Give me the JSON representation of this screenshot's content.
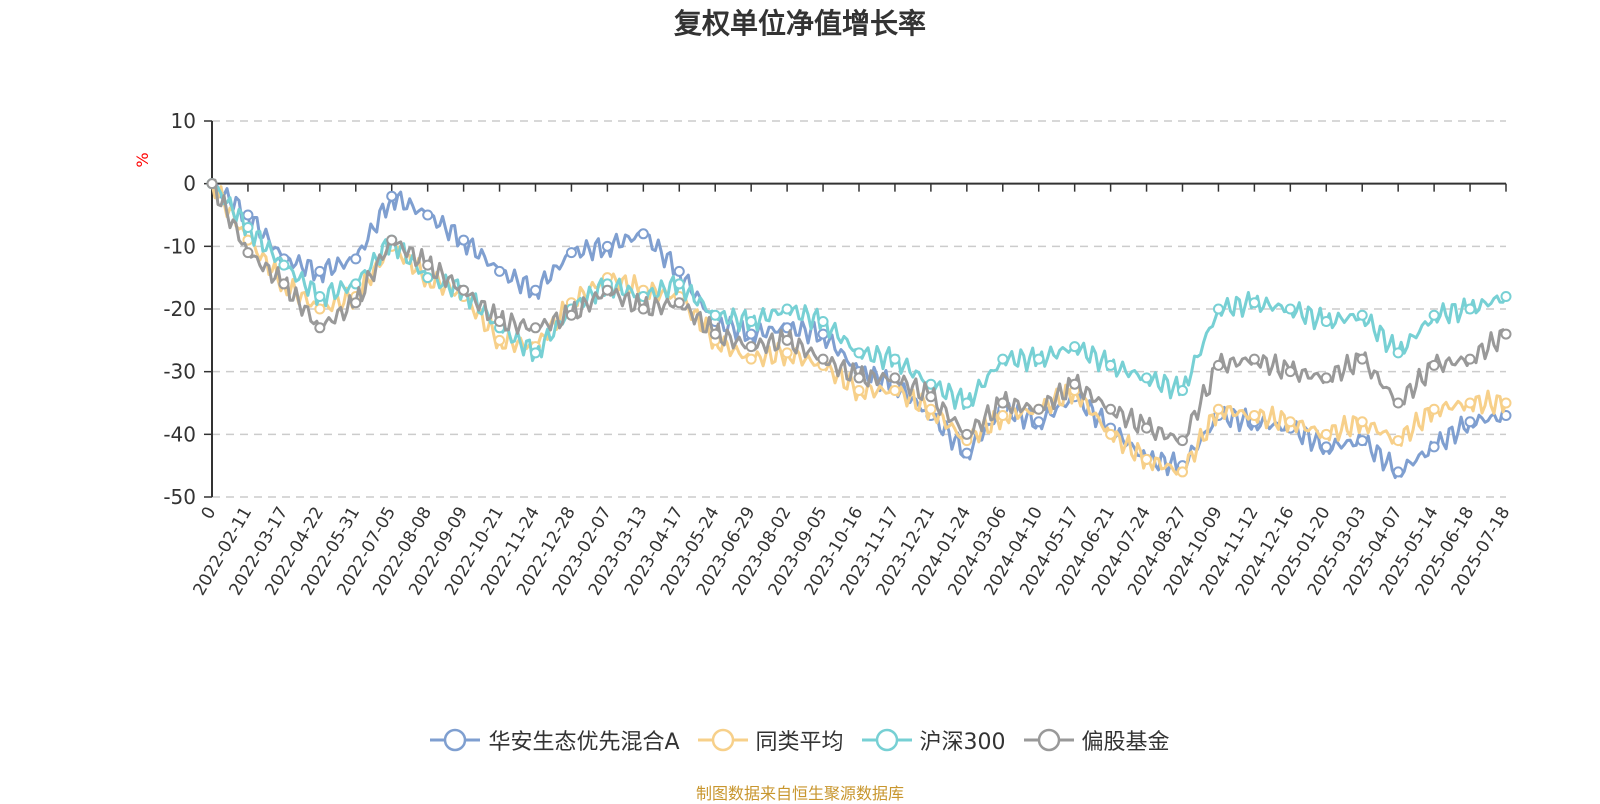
{
  "chart_data": {
    "type": "line",
    "title": "复权单位净值增长率",
    "ylabel": "%",
    "ylim": [
      -50,
      10
    ],
    "yticks": [
      10,
      0,
      -10,
      -20,
      -30,
      -40,
      -50
    ],
    "grid": true,
    "legend_position": "bottom",
    "x": [
      "0",
      "2022-02-11",
      "2022-03-17",
      "2022-04-22",
      "2022-05-31",
      "2022-07-05",
      "2022-08-08",
      "2022-09-09",
      "2022-10-21",
      "2022-11-24",
      "2022-12-28",
      "2023-02-07",
      "2023-03-13",
      "2023-04-17",
      "2023-05-24",
      "2023-06-29",
      "2023-08-02",
      "2023-09-05",
      "2023-10-16",
      "2023-11-17",
      "2023-12-21",
      "2024-01-24",
      "2024-03-06",
      "2024-04-10",
      "2024-05-17",
      "2024-06-21",
      "2024-07-24",
      "2024-08-27",
      "2024-10-09",
      "2024-11-12",
      "2024-12-16",
      "2025-01-20",
      "2025-03-03",
      "2025-04-07",
      "2025-05-14",
      "2025-06-18",
      "2025-07-18"
    ],
    "series": [
      {
        "name": "华安生态优先混合A",
        "color": "#7f9fd0",
        "values": [
          0,
          -5,
          -12,
          -14,
          -12,
          -2,
          -5,
          -9,
          -14,
          -17,
          -11,
          -10,
          -8,
          -14,
          -22,
          -24,
          -23,
          -24,
          -30,
          -32,
          -37,
          -43,
          -36,
          -38,
          -34,
          -39,
          -44,
          -45,
          -37,
          -38,
          -39,
          -42,
          -41,
          -46,
          -42,
          -38,
          -37
        ]
      },
      {
        "name": "同类平均",
        "color": "#f7d08a",
        "values": [
          0,
          -9,
          -16,
          -20,
          -18,
          -10,
          -15,
          -18,
          -25,
          -26,
          -19,
          -15,
          -17,
          -18,
          -25,
          -28,
          -27,
          -29,
          -33,
          -33,
          -36,
          -41,
          -37,
          -36,
          -33,
          -40,
          -44,
          -46,
          -36,
          -37,
          -38,
          -40,
          -38,
          -41,
          -36,
          -35,
          -35
        ]
      },
      {
        "name": "沪深300",
        "color": "#77d0d4",
        "values": [
          0,
          -7,
          -13,
          -18,
          -16,
          -9,
          -15,
          -17,
          -23,
          -27,
          -20,
          -16,
          -18,
          -16,
          -21,
          -22,
          -20,
          -22,
          -27,
          -28,
          -32,
          -35,
          -28,
          -28,
          -26,
          -29,
          -31,
          -33,
          -20,
          -19,
          -20,
          -22,
          -21,
          -27,
          -21,
          -20,
          -18
        ]
      },
      {
        "name": "偏股基金",
        "color": "#999999",
        "values": [
          0,
          -11,
          -16,
          -23,
          -19,
          -9,
          -13,
          -17,
          -22,
          -23,
          -21,
          -17,
          -20,
          -19,
          -24,
          -26,
          -25,
          -28,
          -31,
          -31,
          -34,
          -40,
          -35,
          -36,
          -32,
          -36,
          -39,
          -41,
          -29,
          -28,
          -30,
          -31,
          -28,
          -35,
          -29,
          -28,
          -24
        ]
      }
    ]
  },
  "source_text": "制图数据来自恒生聚源数据库"
}
